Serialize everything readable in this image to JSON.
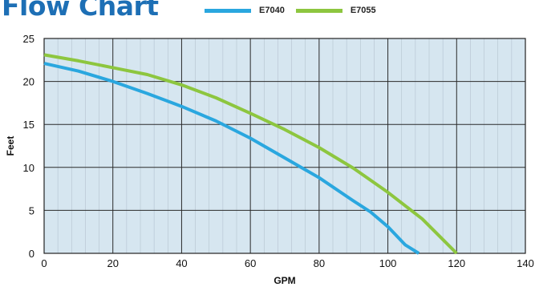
{
  "chart_data": {
    "type": "line",
    "title": "Flow Chart",
    "xlabel": "GPM",
    "ylabel": "Feet",
    "xlim": [
      0,
      140
    ],
    "ylim": [
      0,
      25
    ],
    "x_ticks": [
      "0",
      "20",
      "40",
      "60",
      "80",
      "100",
      "120",
      "140"
    ],
    "y_ticks": [
      "0",
      "5",
      "10",
      "15",
      "20",
      "25"
    ],
    "grid": true,
    "legend_position": "top",
    "series": [
      {
        "name": "E7040",
        "color": "#2aa7df",
        "x": [
          0,
          10,
          20,
          30,
          40,
          50,
          60,
          70,
          80,
          90,
          95,
          100,
          105,
          109
        ],
        "y": [
          22.1,
          21.2,
          20.0,
          18.6,
          17.1,
          15.4,
          13.4,
          11.1,
          8.8,
          6.1,
          4.8,
          3.1,
          1.0,
          0
        ]
      },
      {
        "name": "E7055",
        "color": "#8dc63f",
        "x": [
          0,
          10,
          20,
          30,
          40,
          50,
          60,
          70,
          80,
          90,
          100,
          110,
          115,
          120
        ],
        "y": [
          23.1,
          22.4,
          21.6,
          20.8,
          19.6,
          18.1,
          16.3,
          14.4,
          12.3,
          9.9,
          7.1,
          4.0,
          2.0,
          0
        ]
      }
    ]
  }
}
